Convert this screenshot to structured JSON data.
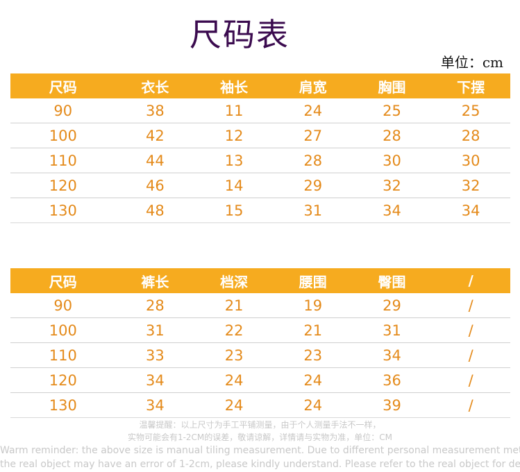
{
  "title": "尺码表",
  "unit": "单位：cm",
  "table_top": {
    "headers": [
      "尺码",
      "衣长",
      "袖长",
      "肩宽",
      "胸围",
      "下摆"
    ],
    "rows": [
      [
        "90",
        "38",
        "11",
        "24",
        "25",
        "25"
      ],
      [
        "100",
        "42",
        "12",
        "27",
        "28",
        "28"
      ],
      [
        "110",
        "44",
        "13",
        "28",
        "30",
        "30"
      ],
      [
        "120",
        "46",
        "14",
        "29",
        "32",
        "32"
      ],
      [
        "130",
        "48",
        "15",
        "31",
        "34",
        "34"
      ]
    ]
  },
  "table_bottom": {
    "headers": [
      "尺码",
      "裤长",
      "档深",
      "腰围",
      "臀围",
      "/"
    ],
    "rows": [
      [
        "90",
        "28",
        "21",
        "19",
        "29",
        "/"
      ],
      [
        "100",
        "31",
        "22",
        "21",
        "31",
        "/"
      ],
      [
        "110",
        "33",
        "23",
        "23",
        "34",
        "/"
      ],
      [
        "120",
        "34",
        "24",
        "24",
        "36",
        "/"
      ],
      [
        "130",
        "34",
        "24",
        "24",
        "39",
        "/"
      ]
    ]
  },
  "notes": {
    "cn_line1": "温馨提醒：以上尺寸为手工平铺测量，由于个人测量手法不一样，",
    "cn_line2": "实物可能会有1-2CM的误差，敬请谅解，详情请与实物为准，单位：CM",
    "en_line1": "Warm reminder: the above size is manual tiling measurement. Due to different personal measurement method",
    "en_line2": "the real object may have an error of 1-2cm, please kindly understand. Please refer to the real object for details"
  }
}
